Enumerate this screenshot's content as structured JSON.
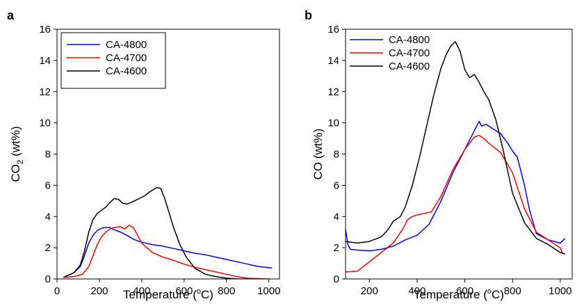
{
  "chart_data": [
    {
      "panel": "a",
      "type": "line",
      "xlabel": "Temperature (°C)",
      "xlabel_main": "Temperature (",
      "xlabel_sup": "o",
      "xlabel_end": "C)",
      "ylabel": "CO2 (wt%)",
      "ylabel_main": "CO",
      "ylabel_sub": "2",
      "ylabel_end": " (wt%)",
      "xlim": [
        0,
        1050
      ],
      "ylim": [
        0,
        16
      ],
      "xticks": [
        0,
        200,
        400,
        600,
        800,
        1000
      ],
      "yticks": [
        0,
        2,
        4,
        6,
        8,
        10,
        12,
        14,
        16
      ],
      "grid": false,
      "legend_position": "top-left",
      "series": [
        {
          "name": "CA-4800",
          "color": "#0000ff",
          "x": [
            30,
            80,
            110,
            130,
            150,
            170,
            190,
            210,
            230,
            250,
            270,
            300,
            330,
            360,
            400,
            450,
            500,
            550,
            600,
            650,
            700,
            750,
            800,
            850,
            900,
            950,
            1000,
            1015
          ],
          "y": [
            0.1,
            0.4,
            0.8,
            1.5,
            2.3,
            2.8,
            3.1,
            3.25,
            3.3,
            3.3,
            3.15,
            3.0,
            2.8,
            2.55,
            2.35,
            2.2,
            2.1,
            1.95,
            1.8,
            1.65,
            1.55,
            1.4,
            1.25,
            1.1,
            0.95,
            0.8,
            0.72,
            0.7
          ]
        },
        {
          "name": "CA-4700",
          "color": "#ff0000",
          "x": [
            30,
            80,
            120,
            150,
            170,
            190,
            210,
            230,
            250,
            270,
            300,
            320,
            340,
            360,
            380,
            400,
            450,
            500,
            550,
            600,
            650,
            700,
            750,
            800,
            850,
            900,
            1000
          ],
          "y": [
            0.1,
            0.15,
            0.3,
            0.8,
            1.5,
            2.2,
            2.7,
            3.0,
            3.2,
            3.3,
            3.35,
            3.2,
            3.45,
            3.3,
            2.8,
            2.3,
            1.7,
            1.4,
            1.2,
            0.95,
            0.75,
            0.6,
            0.45,
            0.3,
            0.15,
            0.05,
            0.0
          ]
        },
        {
          "name": "CA-4600",
          "color": "#000000",
          "x": [
            30,
            80,
            110,
            130,
            150,
            170,
            190,
            210,
            230,
            250,
            270,
            290,
            310,
            330,
            350,
            380,
            410,
            440,
            470,
            490,
            510,
            530,
            550,
            580,
            610,
            650,
            700,
            750,
            800,
            850,
            900
          ],
          "y": [
            0.1,
            0.4,
            0.9,
            1.8,
            3.0,
            3.8,
            4.2,
            4.4,
            4.6,
            4.9,
            5.15,
            5.1,
            4.85,
            4.8,
            4.9,
            5.1,
            5.3,
            5.6,
            5.85,
            5.8,
            5.1,
            4.2,
            3.3,
            2.2,
            1.4,
            0.7,
            0.3,
            0.15,
            0.05,
            0.0,
            0.0
          ]
        }
      ]
    },
    {
      "panel": "b",
      "type": "line",
      "xlabel": "Temperature (°C)",
      "xlabel_main": "Temperature (",
      "xlabel_sup": "o",
      "xlabel_end": "C)",
      "ylabel": "CO (wt%)",
      "ylabel_main": "CO (wt%)",
      "xlim": [
        100,
        1050
      ],
      "ylim": [
        0,
        16
      ],
      "xticks": [
        200,
        400,
        600,
        800,
        1000
      ],
      "yticks": [
        0,
        2,
        4,
        6,
        8,
        10,
        12,
        14,
        16
      ],
      "grid": false,
      "legend_position": "top-left",
      "series": [
        {
          "name": "CA-4800",
          "color": "#0000ff",
          "x": [
            100,
            110,
            120,
            150,
            200,
            250,
            300,
            350,
            400,
            450,
            500,
            550,
            600,
            640,
            660,
            670,
            690,
            720,
            750,
            780,
            800,
            820,
            850,
            870,
            900,
            950,
            1000,
            1020
          ],
          "y": [
            3.2,
            2.2,
            1.9,
            1.85,
            1.8,
            1.9,
            2.1,
            2.5,
            2.8,
            3.5,
            5.0,
            6.8,
            8.3,
            9.5,
            10.1,
            9.8,
            9.9,
            9.6,
            9.3,
            8.7,
            8.2,
            7.8,
            6.0,
            4.5,
            2.9,
            2.5,
            2.3,
            2.6
          ]
        },
        {
          "name": "CA-4700",
          "color": "#ff0000",
          "x": [
            100,
            150,
            200,
            250,
            300,
            340,
            360,
            380,
            400,
            430,
            460,
            500,
            550,
            600,
            640,
            660,
            680,
            700,
            750,
            800,
            850,
            900,
            950,
            1000,
            1010
          ],
          "y": [
            0.45,
            0.5,
            1.1,
            1.7,
            2.3,
            3.2,
            3.8,
            4.0,
            4.1,
            4.2,
            4.3,
            5.3,
            7.0,
            8.3,
            9.1,
            9.2,
            9.0,
            8.7,
            8.1,
            6.8,
            4.5,
            3.0,
            2.5,
            2.0,
            1.6
          ]
        },
        {
          "name": "CA-4600",
          "color": "#000000",
          "x": [
            100,
            150,
            200,
            250,
            280,
            300,
            330,
            350,
            380,
            410,
            440,
            470,
            500,
            520,
            540,
            560,
            580,
            600,
            620,
            640,
            660,
            680,
            700,
            730,
            760,
            800,
            850,
            900,
            950,
            1000,
            1020
          ],
          "y": [
            2.4,
            2.3,
            2.4,
            2.7,
            3.2,
            3.7,
            4.0,
            4.6,
            6.0,
            7.8,
            9.8,
            11.8,
            13.5,
            14.3,
            14.9,
            15.2,
            14.6,
            13.4,
            12.9,
            13.1,
            12.6,
            12.0,
            11.5,
            10.2,
            8.3,
            5.5,
            3.6,
            2.6,
            2.2,
            1.7,
            1.6
          ]
        }
      ]
    }
  ]
}
